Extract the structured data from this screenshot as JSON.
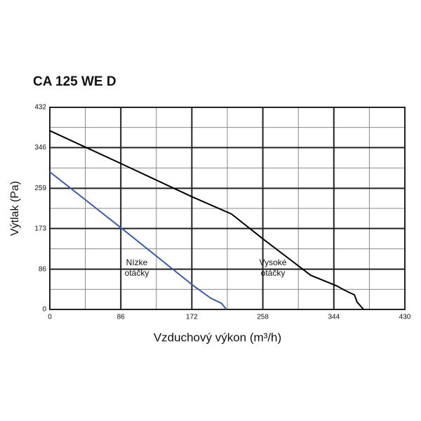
{
  "chart_data": {
    "type": "line",
    "title": "CA 125 WE D",
    "x_label": "Vzduchový výkon (m³/h)",
    "y_label": "Výtlak (Pa)",
    "xlim": [
      0,
      430
    ],
    "ylim": [
      0,
      432
    ],
    "xticks": [
      0,
      86,
      172,
      258,
      344,
      430
    ],
    "yticks": [
      0,
      86,
      173,
      259,
      346,
      432
    ],
    "grid": true,
    "series": [
      {
        "color": "#000000",
        "x": [
          0,
          86,
          172,
          220,
          258,
          316,
          348,
          356,
          369,
          372,
          380
        ],
        "values": [
          382,
          312,
          241,
          204,
          151,
          73,
          50,
          42,
          31,
          16,
          0
        ]
      },
      {
        "color": "#3b5ca8",
        "x": [
          0,
          88,
          173,
          195,
          208,
          214
        ],
        "values": [
          294,
          172,
          52,
          24,
          13,
          0
        ]
      }
    ],
    "annotations": [
      [
        "Nízke",
        "otáčky"
      ],
      [
        "Vysoké",
        "otáčky"
      ]
    ]
  }
}
